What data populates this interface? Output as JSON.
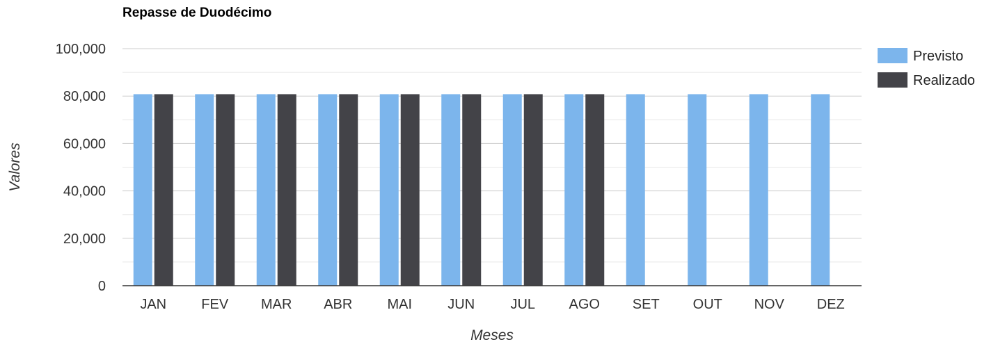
{
  "chart_data": {
    "type": "bar",
    "title": "Repasse de Duodécimo",
    "xlabel": "Meses",
    "ylabel": "Valores",
    "categories": [
      "JAN",
      "FEV",
      "MAR",
      "ABR",
      "MAI",
      "JUN",
      "JUL",
      "AGO",
      "SET",
      "OUT",
      "NOV",
      "DEZ"
    ],
    "series": [
      {
        "name": "Previsto",
        "color": "#7cb5ec",
        "values": [
          80800,
          80800,
          80800,
          80800,
          80800,
          80800,
          80800,
          80800,
          80800,
          80800,
          80800,
          80800
        ]
      },
      {
        "name": "Realizado",
        "color": "#434348",
        "values": [
          80800,
          80800,
          80800,
          80800,
          80800,
          80800,
          80800,
          80800,
          null,
          null,
          null,
          null
        ]
      }
    ],
    "ylim": [
      0,
      100000
    ],
    "yticks": [
      0,
      20000,
      40000,
      60000,
      80000,
      100000
    ],
    "ytick_labels": [
      "0",
      "20,000",
      "40,000",
      "60,000",
      "80,000",
      "100,000"
    ],
    "grid": true,
    "legend_position": "right"
  }
}
